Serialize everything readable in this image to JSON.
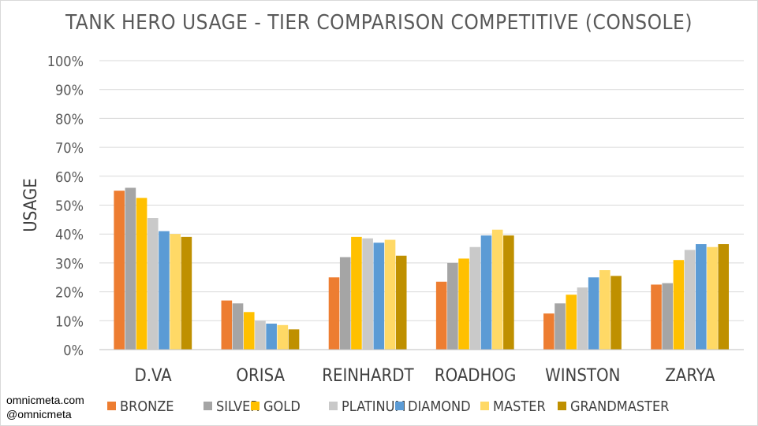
{
  "watermark": {
    "site": "omnicmeta.com",
    "handle": "@omnicmeta"
  },
  "chart_data": {
    "type": "bar",
    "title": "TANK HERO USAGE - TIER COMPARISON COMPETITIVE (CONSOLE)",
    "xlabel": "",
    "ylabel": "USAGE",
    "ylim": [
      0,
      100
    ],
    "ytick_labels": [
      "0%",
      "10%",
      "20%",
      "30%",
      "40%",
      "50%",
      "60%",
      "70%",
      "80%",
      "90%",
      "100%"
    ],
    "grid": true,
    "legend_position": "bottom",
    "categories": [
      "D.VA",
      "ORISA",
      "REINHARDT",
      "ROADHOG",
      "WINSTON",
      "ZARYA"
    ],
    "series": [
      {
        "name": "BRONZE",
        "color": "#ED7D31",
        "values": [
          55,
          17,
          25,
          23.5,
          12.5,
          22.5
        ]
      },
      {
        "name": "SILVER",
        "color": "#A5A5A5",
        "values": [
          56,
          16,
          32,
          30,
          16,
          23
        ]
      },
      {
        "name": "GOLD",
        "color": "#FFC000",
        "values": [
          52.5,
          13,
          39,
          31.5,
          19,
          31
        ]
      },
      {
        "name": "PLATINUM",
        "color": "#C9C9C9",
        "values": [
          45.5,
          10,
          38.5,
          35.5,
          21.5,
          34.5
        ]
      },
      {
        "name": "DIAMOND",
        "color": "#5B9BD5",
        "values": [
          41,
          9,
          37,
          39.5,
          25,
          36.5
        ]
      },
      {
        "name": "MASTER",
        "color": "#FFD966",
        "values": [
          40,
          8.5,
          38,
          41.5,
          27.5,
          35.5
        ]
      },
      {
        "name": "GRANDMASTER",
        "color": "#BF9000",
        "values": [
          39,
          7,
          32.5,
          39.5,
          25.5,
          36.5
        ]
      }
    ]
  }
}
